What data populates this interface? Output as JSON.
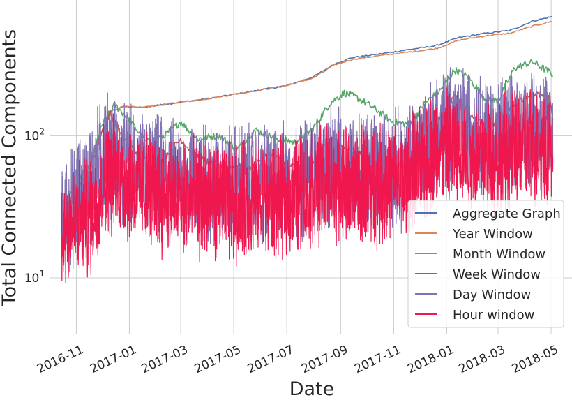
{
  "chart_data": {
    "type": "line",
    "title": "",
    "xlabel": "Date",
    "ylabel": "Total Connected Components",
    "yscale": "log",
    "ylim": [
      4,
      900
    ],
    "xlim": [
      "2016-10-02",
      "2018-05-25"
    ],
    "grid": true,
    "legend_position": "lower-right",
    "x_ticks": [
      "2016-11",
      "2017-01",
      "2017-03",
      "2017-05",
      "2017-07",
      "2017-09",
      "2017-11",
      "2018-01",
      "2018-03",
      "2018-05"
    ],
    "y_ticks": [
      {
        "value": 10,
        "base": "10",
        "exp": "1"
      },
      {
        "value": 100,
        "base": "10",
        "exp": "2"
      }
    ],
    "series": [
      {
        "name": "Aggregate Graph",
        "color": "#4c72b0",
        "style": "smooth",
        "points": [
          [
            "2016-10-15",
            26
          ],
          [
            "2016-11-01",
            45
          ],
          [
            "2016-11-15",
            60
          ],
          [
            "2016-12-01",
            110
          ],
          [
            "2016-12-12",
            150
          ],
          [
            "2016-12-25",
            160
          ],
          [
            "2017-01-15",
            158
          ],
          [
            "2017-02-01",
            163
          ],
          [
            "2017-03-01",
            172
          ],
          [
            "2017-04-01",
            182
          ],
          [
            "2017-05-01",
            195
          ],
          [
            "2017-06-01",
            210
          ],
          [
            "2017-07-01",
            225
          ],
          [
            "2017-08-01",
            260
          ],
          [
            "2017-08-25",
            320
          ],
          [
            "2017-09-15",
            355
          ],
          [
            "2017-10-15",
            375
          ],
          [
            "2017-11-15",
            400
          ],
          [
            "2017-12-20",
            430
          ],
          [
            "2018-01-15",
            490
          ],
          [
            "2018-02-15",
            525
          ],
          [
            "2018-03-15",
            550
          ],
          [
            "2018-04-10",
            640
          ],
          [
            "2018-05-03",
            690
          ]
        ]
      },
      {
        "name": "Year Window",
        "color": "#dd8452",
        "style": "smooth",
        "points": [
          [
            "2016-10-15",
            26
          ],
          [
            "2016-11-01",
            45
          ],
          [
            "2016-11-15",
            60
          ],
          [
            "2016-12-01",
            110
          ],
          [
            "2016-12-12",
            150
          ],
          [
            "2016-12-25",
            160
          ],
          [
            "2017-01-15",
            158
          ],
          [
            "2017-02-01",
            163
          ],
          [
            "2017-03-01",
            172
          ],
          [
            "2017-04-01",
            182
          ],
          [
            "2017-05-01",
            195
          ],
          [
            "2017-06-01",
            210
          ],
          [
            "2017-07-01",
            225
          ],
          [
            "2017-08-01",
            255
          ],
          [
            "2017-08-25",
            315
          ],
          [
            "2017-09-15",
            345
          ],
          [
            "2017-10-15",
            365
          ],
          [
            "2017-11-15",
            385
          ],
          [
            "2017-12-20",
            410
          ],
          [
            "2018-01-15",
            470
          ],
          [
            "2018-02-15",
            505
          ],
          [
            "2018-03-15",
            525
          ],
          [
            "2018-04-10",
            590
          ],
          [
            "2018-05-03",
            640
          ]
        ]
      },
      {
        "name": "Month Window",
        "color": "#55a868",
        "style": "wiggle",
        "points": [
          [
            "2016-10-15",
            32
          ],
          [
            "2016-11-01",
            48
          ],
          [
            "2016-11-15",
            60
          ],
          [
            "2016-12-01",
            120
          ],
          [
            "2016-12-15",
            165
          ],
          [
            "2017-01-01",
            130
          ],
          [
            "2017-01-20",
            90
          ],
          [
            "2017-02-10",
            100
          ],
          [
            "2017-03-01",
            125
          ],
          [
            "2017-03-20",
            95
          ],
          [
            "2017-04-15",
            100
          ],
          [
            "2017-05-05",
            80
          ],
          [
            "2017-05-25",
            110
          ],
          [
            "2017-06-20",
            95
          ],
          [
            "2017-07-10",
            90
          ],
          [
            "2017-07-30",
            110
          ],
          [
            "2017-08-20",
            170
          ],
          [
            "2017-09-05",
            200
          ],
          [
            "2017-09-20",
            185
          ],
          [
            "2017-10-10",
            155
          ],
          [
            "2017-10-30",
            125
          ],
          [
            "2017-11-20",
            120
          ],
          [
            "2017-12-05",
            165
          ],
          [
            "2017-12-25",
            210
          ],
          [
            "2018-01-10",
            290
          ],
          [
            "2018-01-25",
            260
          ],
          [
            "2018-02-15",
            180
          ],
          [
            "2018-03-01",
            175
          ],
          [
            "2018-03-20",
            300
          ],
          [
            "2018-04-10",
            330
          ],
          [
            "2018-05-03",
            270
          ]
        ]
      },
      {
        "name": "Week Window",
        "color": "#c44e52",
        "style": "wiggle",
        "points": [
          [
            "2016-10-15",
            28
          ],
          [
            "2016-11-01",
            42
          ],
          [
            "2016-11-15",
            55
          ],
          [
            "2016-12-01",
            110
          ],
          [
            "2016-12-10",
            145
          ],
          [
            "2016-12-25",
            95
          ],
          [
            "2017-01-15",
            70
          ],
          [
            "2017-02-01",
            60
          ],
          [
            "2017-03-01",
            95
          ],
          [
            "2017-03-15",
            75
          ],
          [
            "2017-04-01",
            65
          ],
          [
            "2017-05-01",
            60
          ],
          [
            "2017-05-20",
            60
          ],
          [
            "2017-06-10",
            75
          ],
          [
            "2017-07-10",
            60
          ],
          [
            "2017-08-01",
            65
          ],
          [
            "2017-08-20",
            95
          ],
          [
            "2017-09-10",
            80
          ],
          [
            "2017-10-10",
            70
          ],
          [
            "2017-11-05",
            60
          ],
          [
            "2017-12-05",
            95
          ],
          [
            "2017-12-25",
            140
          ],
          [
            "2018-01-10",
            190
          ],
          [
            "2018-02-01",
            130
          ],
          [
            "2018-02-20",
            115
          ],
          [
            "2018-03-20",
            170
          ],
          [
            "2018-04-10",
            200
          ],
          [
            "2018-04-30",
            180
          ],
          [
            "2018-05-03",
            130
          ]
        ]
      },
      {
        "name": "Day Window",
        "color": "#8172b2",
        "style": "noisy",
        "points": [
          [
            "2016-10-15",
            24
          ],
          [
            "2016-11-01",
            35
          ],
          [
            "2016-11-15",
            45
          ],
          [
            "2016-12-05",
            80
          ],
          [
            "2016-12-20",
            65
          ],
          [
            "2017-01-15",
            55
          ],
          [
            "2017-03-01",
            48
          ],
          [
            "2017-05-01",
            46
          ],
          [
            "2017-07-01",
            46
          ],
          [
            "2017-08-15",
            58
          ],
          [
            "2017-09-15",
            58
          ],
          [
            "2017-11-15",
            58
          ],
          [
            "2017-12-20",
            110
          ],
          [
            "2018-01-15",
            120
          ],
          [
            "2018-03-01",
            95
          ],
          [
            "2018-04-15",
            115
          ],
          [
            "2018-05-03",
            105
          ]
        ]
      },
      {
        "name": "Hour window",
        "color": "#f0174f",
        "style": "noisy",
        "points": [
          [
            "2016-10-15",
            20
          ],
          [
            "2016-11-01",
            26
          ],
          [
            "2016-11-20",
            28
          ],
          [
            "2016-12-05",
            55
          ],
          [
            "2016-12-20",
            50
          ],
          [
            "2017-01-15",
            42
          ],
          [
            "2017-03-01",
            36
          ],
          [
            "2017-05-01",
            34
          ],
          [
            "2017-07-01",
            36
          ],
          [
            "2017-08-15",
            48
          ],
          [
            "2017-09-15",
            44
          ],
          [
            "2017-11-15",
            48
          ],
          [
            "2017-12-20",
            80
          ],
          [
            "2018-01-15",
            80
          ],
          [
            "2018-03-01",
            72
          ],
          [
            "2018-04-15",
            88
          ],
          [
            "2018-05-03",
            82
          ]
        ]
      }
    ]
  }
}
